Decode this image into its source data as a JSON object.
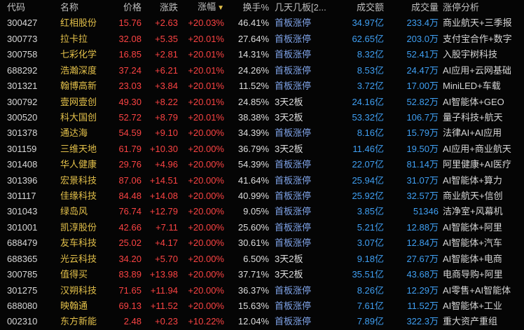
{
  "colors": {
    "bg": "#050505",
    "header": "#bfbfbf",
    "code": "#d8d8d8",
    "name": "#e3c04a",
    "up": "#fb4343",
    "neutral": "#dedede",
    "boards_first": "#7fa3e8",
    "blue": "#3f9ff2",
    "analysis": "#d6d6d6",
    "arrow": "#e3c04a"
  },
  "table": {
    "sort_arrow": "▼",
    "columns": [
      {
        "key": "code",
        "label": "代码"
      },
      {
        "key": "name",
        "label": "名称"
      },
      {
        "key": "price",
        "label": "价格"
      },
      {
        "key": "change",
        "label": "涨跌"
      },
      {
        "key": "pct",
        "label": "涨幅"
      },
      {
        "key": "turnover",
        "label": "换手%"
      },
      {
        "key": "boards",
        "label": "几天几板[2..."
      },
      {
        "key": "amount",
        "label": "成交额"
      },
      {
        "key": "volume",
        "label": "成交量"
      },
      {
        "key": "analysis",
        "label": "涨停分析"
      }
    ],
    "rows": [
      {
        "code": "300427",
        "name": "红相股份",
        "price": "15.76",
        "change": "+2.63",
        "pct": "+20.03%",
        "turnover": "46.41%",
        "boards": "首板涨停",
        "amount": "34.97亿",
        "volume": "233.4万",
        "analysis": "商业航天+三季报"
      },
      {
        "code": "300773",
        "name": "拉卡拉",
        "price": "32.08",
        "change": "+5.35",
        "pct": "+20.01%",
        "turnover": "27.64%",
        "boards": "首板涨停",
        "amount": "62.65亿",
        "volume": "203.0万",
        "analysis": "支付宝合作+数字"
      },
      {
        "code": "300758",
        "name": "七彩化学",
        "price": "16.85",
        "change": "+2.81",
        "pct": "+20.01%",
        "turnover": "14.31%",
        "boards": "首板涨停",
        "amount": "8.32亿",
        "volume": "52.41万",
        "analysis": "入股宇树科技"
      },
      {
        "code": "688292",
        "name": "浩瀚深度",
        "price": "37.24",
        "change": "+6.21",
        "pct": "+20.01%",
        "turnover": "24.26%",
        "boards": "首板涨停",
        "amount": "8.53亿",
        "volume": "24.47万",
        "analysis": "AI应用+云网基础"
      },
      {
        "code": "301321",
        "name": "翰博高新",
        "price": "23.03",
        "change": "+3.84",
        "pct": "+20.01%",
        "turnover": "11.52%",
        "boards": "首板涨停",
        "amount": "3.72亿",
        "volume": "17.00万",
        "analysis": "MiniLED+车载"
      },
      {
        "code": "300792",
        "name": "壹网壹创",
        "price": "49.30",
        "change": "+8.22",
        "pct": "+20.01%",
        "turnover": "24.85%",
        "boards": "3天2板",
        "amount": "24.16亿",
        "volume": "52.82万",
        "analysis": "AI智能体+GEO"
      },
      {
        "code": "300520",
        "name": "科大国创",
        "price": "52.72",
        "change": "+8.79",
        "pct": "+20.01%",
        "turnover": "38.38%",
        "boards": "3天2板",
        "amount": "53.32亿",
        "volume": "106.7万",
        "analysis": "量子科技+航天"
      },
      {
        "code": "301378",
        "name": "通达海",
        "price": "54.59",
        "change": "+9.10",
        "pct": "+20.00%",
        "turnover": "34.39%",
        "boards": "首板涨停",
        "amount": "8.16亿",
        "volume": "15.79万",
        "analysis": "法律AI+AI应用"
      },
      {
        "code": "301159",
        "name": "三维天地",
        "price": "61.79",
        "change": "+10.30",
        "pct": "+20.00%",
        "turnover": "36.79%",
        "boards": "3天2板",
        "amount": "11.46亿",
        "volume": "19.50万",
        "analysis": "AI应用+商业航天"
      },
      {
        "code": "301408",
        "name": "华人健康",
        "price": "29.76",
        "change": "+4.96",
        "pct": "+20.00%",
        "turnover": "54.39%",
        "boards": "首板涨停",
        "amount": "22.07亿",
        "volume": "81.14万",
        "analysis": "阿里健康+AI医疗"
      },
      {
        "code": "301396",
        "name": "宏景科技",
        "price": "87.06",
        "change": "+14.51",
        "pct": "+20.00%",
        "turnover": "41.64%",
        "boards": "首板涨停",
        "amount": "25.94亿",
        "volume": "31.07万",
        "analysis": "AI智能体+算力"
      },
      {
        "code": "301117",
        "name": "佳缘科技",
        "price": "84.48",
        "change": "+14.08",
        "pct": "+20.00%",
        "turnover": "40.99%",
        "boards": "首板涨停",
        "amount": "25.92亿",
        "volume": "32.57万",
        "analysis": "商业航天+信创"
      },
      {
        "code": "301043",
        "name": "绿岛风",
        "price": "76.74",
        "change": "+12.79",
        "pct": "+20.00%",
        "turnover": "9.05%",
        "boards": "首板涨停",
        "amount": "3.85亿",
        "volume": "51346",
        "analysis": "洁净室+风幕机"
      },
      {
        "code": "301001",
        "name": "凯淳股份",
        "price": "42.66",
        "change": "+7.11",
        "pct": "+20.00%",
        "turnover": "25.60%",
        "boards": "首板涨停",
        "amount": "5.21亿",
        "volume": "12.88万",
        "analysis": "AI智能体+阿里"
      },
      {
        "code": "688479",
        "name": "友车科技",
        "price": "25.02",
        "change": "+4.17",
        "pct": "+20.00%",
        "turnover": "30.61%",
        "boards": "首板涨停",
        "amount": "3.07亿",
        "volume": "12.84万",
        "analysis": "AI智能体+汽车"
      },
      {
        "code": "688365",
        "name": "光云科技",
        "price": "34.20",
        "change": "+5.70",
        "pct": "+20.00%",
        "turnover": "6.50%",
        "boards": "3天2板",
        "amount": "9.18亿",
        "volume": "27.67万",
        "analysis": "AI智能体+电商"
      },
      {
        "code": "300785",
        "name": "值得买",
        "price": "83.89",
        "change": "+13.98",
        "pct": "+20.00%",
        "turnover": "37.71%",
        "boards": "3天2板",
        "amount": "35.51亿",
        "volume": "43.68万",
        "analysis": "电商导购+阿里"
      },
      {
        "code": "301275",
        "name": "汉朔科技",
        "price": "71.65",
        "change": "+11.94",
        "pct": "+20.00%",
        "turnover": "36.37%",
        "boards": "首板涨停",
        "amount": "8.26亿",
        "volume": "12.29万",
        "analysis": "AI零售+AI智能体"
      },
      {
        "code": "688080",
        "name": "映翰通",
        "price": "69.13",
        "change": "+11.52",
        "pct": "+20.00%",
        "turnover": "15.63%",
        "boards": "首板涨停",
        "amount": "7.61亿",
        "volume": "11.52万",
        "analysis": "AI智能体+工业"
      },
      {
        "code": "002310",
        "name": "东方新能",
        "price": "2.48",
        "change": "+0.23",
        "pct": "+10.22%",
        "turnover": "12.04%",
        "boards": "首板涨停",
        "amount": "7.89亿",
        "volume": "322.3万",
        "analysis": "重大资产重组"
      }
    ]
  }
}
